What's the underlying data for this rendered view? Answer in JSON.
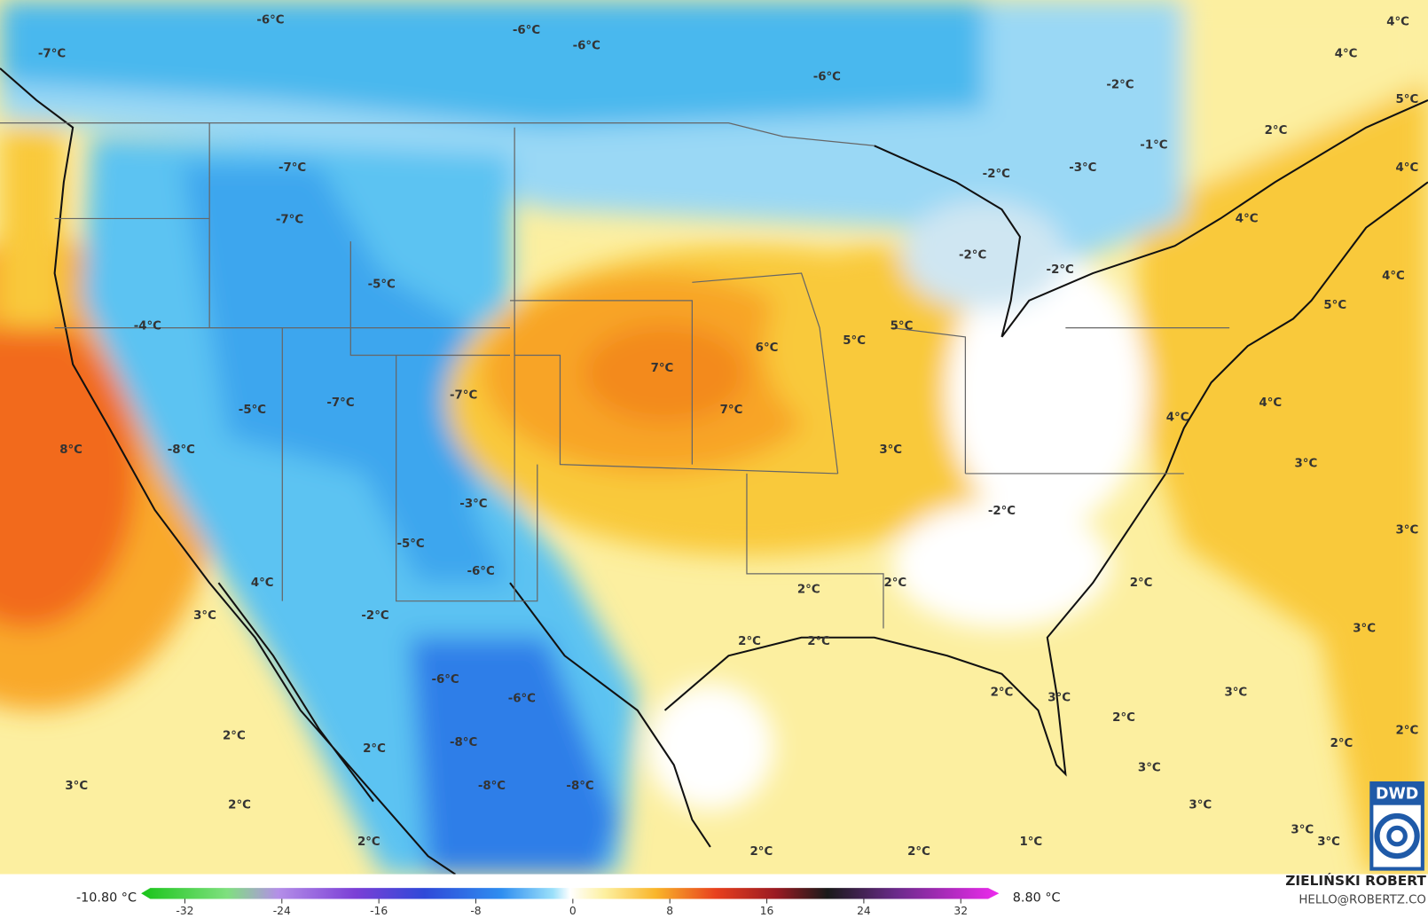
{
  "map_labels": [
    "-6°C",
    "-6°C",
    "-6°C",
    "-6°C",
    "-7°C",
    "4°C",
    "4°C",
    "-2°C",
    "5°C",
    "2°C",
    "-1°C",
    "-2°C",
    "-3°C",
    "4°C",
    "-7°C",
    "-7°C",
    "4°C",
    "-2°C",
    "-2°C",
    "4°C",
    "-5°C",
    "5°C",
    "-4°C",
    "6°C",
    "5°C",
    "5°C",
    "7°C",
    "-7°C",
    "-7°C",
    "-5°C",
    "7°C",
    "4°C",
    "4°C",
    "8°C",
    "-8°C",
    "3°C",
    "3°C",
    "-3°C",
    "-2°C",
    "3°C",
    "-5°C",
    "-6°C",
    "2°C",
    "2°C",
    "2°C",
    "4°C",
    "-2°C",
    "3°C",
    "3°C",
    "2°C",
    "2°C",
    "-6°C",
    "2°C",
    "3°C",
    "3°C",
    "-6°C",
    "2°C",
    "2°C",
    "-8°C",
    "2°C",
    "2°C",
    "2°C",
    "3°C",
    "-8°C",
    "-8°C",
    "3°C",
    "2°C",
    "3°C",
    "3°C",
    "2°C",
    "2°C",
    "2°C",
    "1°C",
    "3°C"
  ],
  "colorbar": {
    "min_label": "-10.80 °C",
    "max_label": "8.80 °C",
    "ticks": [
      -32,
      -24,
      -16,
      -8,
      0,
      8,
      16,
      24,
      32
    ]
  },
  "credit": {
    "author": "ZIELIŃSKI ROBERT",
    "contact": "HELLO@ROBERTZ.CO"
  },
  "logo": "DWD"
}
